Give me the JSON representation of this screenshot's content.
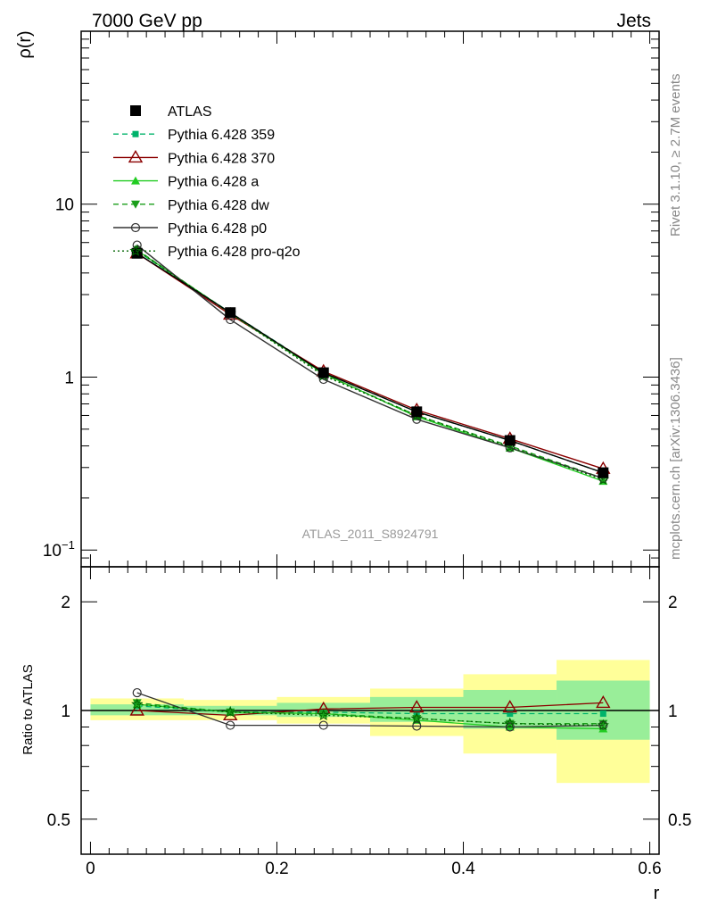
{
  "header": {
    "left": "7000 GeV pp",
    "right": "Jets"
  },
  "side_labels": {
    "top": "Rivet 3.1.10, ≥ 2.7M events",
    "bottom": "mcplots.cern.ch [arXiv:1306.3436]"
  },
  "watermark": "ATLAS_2011_S8924791",
  "colors": {
    "atlas": "#000000",
    "p359": "#00b36b",
    "p370": "#8b0000",
    "pa": "#22cc22",
    "pdw": "#1a9e1a",
    "pp0": "#333333",
    "pq2o": "#006400",
    "band_yellow": "#ffff99",
    "band_green": "#99ee99"
  },
  "chart_data": [
    {
      "type": "line",
      "panel": "main",
      "ylabel": "ρ(r)",
      "xlabel": "",
      "yscale": "log",
      "ylim": [
        0.08,
        100
      ],
      "xlim": [
        -0.01,
        0.61
      ],
      "yticks": [
        {
          "v": 0.1,
          "t": "10",
          "sup": "−1"
        },
        {
          "v": 1,
          "t": "1",
          "sup": ""
        },
        {
          "v": 10,
          "t": "10",
          "sup": ""
        }
      ],
      "legend_position": "top-left",
      "x": [
        0.05,
        0.15,
        0.25,
        0.35,
        0.45,
        0.55
      ],
      "series": [
        {
          "name": "ATLAS",
          "key": "atlas",
          "values": [
            5.2,
            2.36,
            1.06,
            0.63,
            0.43,
            0.28
          ],
          "style": "solid",
          "marker": "square-filled"
        },
        {
          "name": "Pythia 6.428 359",
          "key": "p359",
          "values": [
            5.35,
            2.36,
            1.07,
            0.63,
            0.43,
            0.28
          ],
          "style": "dashed",
          "marker": "square-small"
        },
        {
          "name": "Pythia 6.428 370",
          "key": "p370",
          "values": [
            5.2,
            2.3,
            1.08,
            0.645,
            0.44,
            0.295
          ],
          "style": "solid",
          "marker": "triangle-open"
        },
        {
          "name": "Pythia 6.428 a",
          "key": "pa",
          "values": [
            5.4,
            2.35,
            1.05,
            0.59,
            0.39,
            0.25
          ],
          "style": "solid",
          "marker": "triangle-filled"
        },
        {
          "name": "Pythia 6.428 dw",
          "key": "pdw",
          "values": [
            5.45,
            2.34,
            1.04,
            0.6,
            0.4,
            0.26
          ],
          "style": "dashed",
          "marker": "triangle-down-filled"
        },
        {
          "name": "Pythia 6.428 p0",
          "key": "pp0",
          "values": [
            5.8,
            2.15,
            0.97,
            0.57,
            0.39,
            0.26
          ],
          "style": "solid",
          "marker": "circle-open"
        },
        {
          "name": "Pythia 6.428 pro-q2o",
          "key": "pq2o",
          "values": [
            5.4,
            2.34,
            1.02,
            0.6,
            0.395,
            0.255
          ],
          "style": "dotted",
          "marker": "star"
        }
      ]
    },
    {
      "type": "line",
      "panel": "ratio",
      "ylabel": "Ratio to ATLAS",
      "xlabel": "r",
      "yscale": "log",
      "ylim": [
        0.4,
        2.5
      ],
      "xlim": [
        -0.01,
        0.61
      ],
      "yticks": [
        {
          "v": 0.5,
          "t": "0.5"
        },
        {
          "v": 1,
          "t": "1"
        },
        {
          "v": 2,
          "t": "2"
        }
      ],
      "xticks": [
        {
          "v": 0,
          "t": "0"
        },
        {
          "v": 0.2,
          "t": "0.2"
        },
        {
          "v": 0.4,
          "t": "0.4"
        },
        {
          "v": 0.6,
          "t": "0.6"
        }
      ],
      "bins": [
        [
          0.0,
          0.1
        ],
        [
          0.1,
          0.2
        ],
        [
          0.2,
          0.3
        ],
        [
          0.3,
          0.4
        ],
        [
          0.4,
          0.5
        ],
        [
          0.5,
          0.6
        ]
      ],
      "band_total": [
        [
          0.94,
          1.08
        ],
        [
          0.94,
          1.07
        ],
        [
          0.92,
          1.09
        ],
        [
          0.85,
          1.15
        ],
        [
          0.76,
          1.26
        ],
        [
          0.63,
          1.38
        ]
      ],
      "band_stat": [
        [
          0.97,
          1.04
        ],
        [
          0.97,
          1.03
        ],
        [
          0.96,
          1.05
        ],
        [
          0.93,
          1.09
        ],
        [
          0.89,
          1.14
        ],
        [
          0.83,
          1.21
        ]
      ],
      "x": [
        0.05,
        0.15,
        0.25,
        0.35,
        0.45,
        0.55
      ],
      "series": [
        {
          "key": "p359",
          "values": [
            1.03,
            0.99,
            0.99,
            0.98,
            0.98,
            0.98
          ],
          "style": "dashed",
          "marker": "square-small"
        },
        {
          "key": "p370",
          "values": [
            1.0,
            0.97,
            1.01,
            1.02,
            1.02,
            1.05
          ],
          "style": "solid",
          "marker": "triangle-open"
        },
        {
          "key": "pa",
          "values": [
            1.04,
            0.99,
            0.98,
            0.94,
            0.9,
            0.89
          ],
          "style": "solid",
          "marker": "triangle-filled"
        },
        {
          "key": "pdw",
          "values": [
            1.05,
            0.99,
            0.98,
            0.95,
            0.92,
            0.92
          ],
          "style": "dashed",
          "marker": "triangle-down-filled"
        },
        {
          "key": "pp0",
          "values": [
            1.12,
            0.91,
            0.91,
            0.905,
            0.9,
            0.91
          ],
          "style": "solid",
          "marker": "circle-open"
        },
        {
          "key": "pq2o",
          "values": [
            1.04,
            0.99,
            0.97,
            0.95,
            0.92,
            0.91
          ],
          "style": "dotted",
          "marker": "star"
        }
      ]
    }
  ]
}
